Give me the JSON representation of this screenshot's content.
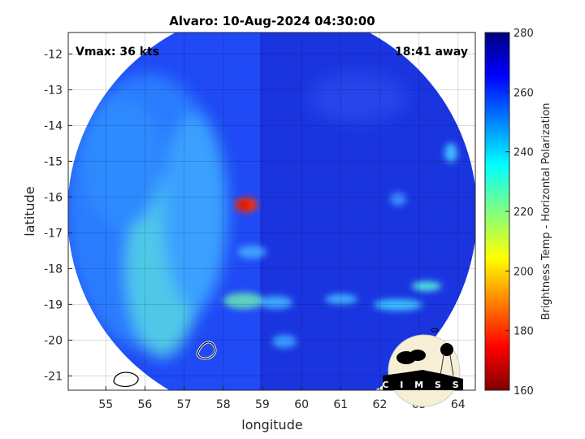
{
  "chart_data": {
    "type": "heatmap",
    "title": "Alvaro: 10-Aug-2024 04:30:00",
    "xlabel": "longitude",
    "ylabel": "latitude",
    "xlim": [
      54.04,
      64.44
    ],
    "ylim": [
      -21.4,
      -11.4
    ],
    "xticks": [
      55,
      56,
      57,
      58,
      59,
      60,
      61,
      62,
      63,
      64
    ],
    "yticks": [
      -12,
      -13,
      -14,
      -15,
      -16,
      -17,
      -18,
      -19,
      -20,
      -21
    ],
    "grid": true,
    "colormap": "jet",
    "colorbar": {
      "label": "Brightness Temp - Horizontal Polarization",
      "range": [
        160,
        280
      ],
      "ticks": [
        280,
        260,
        240,
        220,
        200,
        180,
        160
      ]
    },
    "annotations": {
      "vmax": "Vmax: 36 kts",
      "time_away": "18:41 away"
    },
    "features": {
      "min_brightness_temp_location": [
        58.6,
        -16.2
      ],
      "min_brightness_temp_approx": 185
    }
  },
  "logo": "CIMSS"
}
